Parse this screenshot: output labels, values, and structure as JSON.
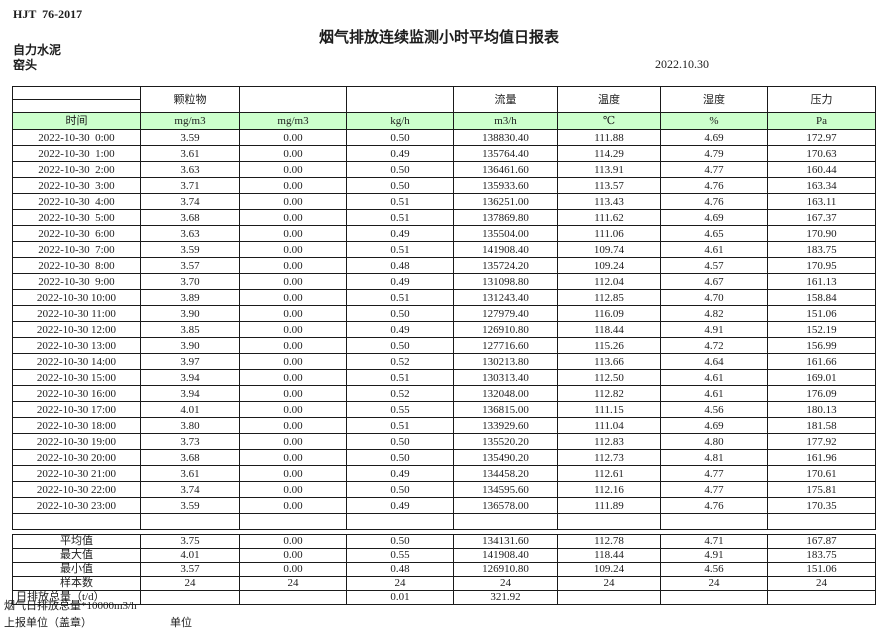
{
  "page": {
    "doc_code": "HJT  76-2017",
    "title": "烟气排放连续监测小时平均值日报表",
    "company": "自力水泥",
    "station": "窑头",
    "date": "2022.10.30"
  },
  "colors": {
    "unit_row_bg": "#ccffcc",
    "border": "#1a1a1a"
  },
  "table": {
    "group_headers": [
      "颗粒物",
      "",
      "",
      "流量",
      "温度",
      "湿度",
      "压力"
    ],
    "unit_row": {
      "time_label": "时间",
      "units": [
        "mg/m3",
        "mg/m3",
        "kg/h",
        "m3/h",
        "℃",
        "%",
        "Pa"
      ]
    },
    "rows": [
      {
        "time": "2022-10-30  0:00",
        "values": [
          "3.59",
          "0.00",
          "0.50",
          "138830.40",
          "111.88",
          "4.69",
          "172.97"
        ]
      },
      {
        "time": "2022-10-30  1:00",
        "values": [
          "3.61",
          "0.00",
          "0.49",
          "135764.40",
          "114.29",
          "4.79",
          "170.63"
        ]
      },
      {
        "time": "2022-10-30  2:00",
        "values": [
          "3.63",
          "0.00",
          "0.50",
          "136461.60",
          "113.91",
          "4.77",
          "160.44"
        ]
      },
      {
        "time": "2022-10-30  3:00",
        "values": [
          "3.71",
          "0.00",
          "0.50",
          "135933.60",
          "113.57",
          "4.76",
          "163.34"
        ]
      },
      {
        "time": "2022-10-30  4:00",
        "values": [
          "3.74",
          "0.00",
          "0.51",
          "136251.00",
          "113.43",
          "4.76",
          "163.11"
        ]
      },
      {
        "time": "2022-10-30  5:00",
        "values": [
          "3.68",
          "0.00",
          "0.51",
          "137869.80",
          "111.62",
          "4.69",
          "167.37"
        ]
      },
      {
        "time": "2022-10-30  6:00",
        "values": [
          "3.63",
          "0.00",
          "0.49",
          "135504.00",
          "111.06",
          "4.65",
          "170.90"
        ]
      },
      {
        "time": "2022-10-30  7:00",
        "values": [
          "3.59",
          "0.00",
          "0.51",
          "141908.40",
          "109.74",
          "4.61",
          "183.75"
        ]
      },
      {
        "time": "2022-10-30  8:00",
        "values": [
          "3.57",
          "0.00",
          "0.48",
          "135724.20",
          "109.24",
          "4.57",
          "170.95"
        ]
      },
      {
        "time": "2022-10-30  9:00",
        "values": [
          "3.70",
          "0.00",
          "0.49",
          "131098.80",
          "112.04",
          "4.67",
          "161.13"
        ]
      },
      {
        "time": "2022-10-30 10:00",
        "values": [
          "3.89",
          "0.00",
          "0.51",
          "131243.40",
          "112.85",
          "4.70",
          "158.84"
        ]
      },
      {
        "time": "2022-10-30 11:00",
        "values": [
          "3.90",
          "0.00",
          "0.50",
          "127979.40",
          "116.09",
          "4.82",
          "151.06"
        ]
      },
      {
        "time": "2022-10-30 12:00",
        "values": [
          "3.85",
          "0.00",
          "0.49",
          "126910.80",
          "118.44",
          "4.91",
          "152.19"
        ]
      },
      {
        "time": "2022-10-30 13:00",
        "values": [
          "3.90",
          "0.00",
          "0.50",
          "127716.60",
          "115.26",
          "4.72",
          "156.99"
        ]
      },
      {
        "time": "2022-10-30 14:00",
        "values": [
          "3.97",
          "0.00",
          "0.52",
          "130213.80",
          "113.66",
          "4.64",
          "161.66"
        ]
      },
      {
        "time": "2022-10-30 15:00",
        "values": [
          "3.94",
          "0.00",
          "0.51",
          "130313.40",
          "112.50",
          "4.61",
          "169.01"
        ]
      },
      {
        "time": "2022-10-30 16:00",
        "values": [
          "3.94",
          "0.00",
          "0.52",
          "132048.00",
          "112.82",
          "4.61",
          "176.09"
        ]
      },
      {
        "time": "2022-10-30 17:00",
        "values": [
          "4.01",
          "0.00",
          "0.55",
          "136815.00",
          "111.15",
          "4.56",
          "180.13"
        ]
      },
      {
        "time": "2022-10-30 18:00",
        "values": [
          "3.80",
          "0.00",
          "0.51",
          "133929.60",
          "111.04",
          "4.69",
          "181.58"
        ]
      },
      {
        "time": "2022-10-30 19:00",
        "values": [
          "3.73",
          "0.00",
          "0.50",
          "135520.20",
          "112.83",
          "4.80",
          "177.92"
        ]
      },
      {
        "time": "2022-10-30 20:00",
        "values": [
          "3.68",
          "0.00",
          "0.50",
          "135490.20",
          "112.73",
          "4.81",
          "161.96"
        ]
      },
      {
        "time": "2022-10-30 21:00",
        "values": [
          "3.61",
          "0.00",
          "0.49",
          "134458.20",
          "112.61",
          "4.77",
          "170.61"
        ]
      },
      {
        "time": "2022-10-30 22:00",
        "values": [
          "3.74",
          "0.00",
          "0.50",
          "134595.60",
          "112.16",
          "4.77",
          "175.81"
        ]
      },
      {
        "time": "2022-10-30 23:00",
        "values": [
          "3.59",
          "0.00",
          "0.49",
          "136578.00",
          "111.89",
          "4.76",
          "170.35"
        ]
      }
    ],
    "summary": [
      {
        "label": "平均值",
        "values": [
          "3.75",
          "0.00",
          "0.50",
          "134131.60",
          "112.78",
          "4.71",
          "167.87"
        ]
      },
      {
        "label": "最大值",
        "values": [
          "4.01",
          "0.00",
          "0.55",
          "141908.40",
          "118.44",
          "4.91",
          "183.75"
        ]
      },
      {
        "label": "最小值",
        "values": [
          "3.57",
          "0.00",
          "0.48",
          "126910.80",
          "109.24",
          "4.56",
          "151.06"
        ]
      },
      {
        "label": "样本数",
        "values": [
          "24",
          "24",
          "24",
          "24",
          "24",
          "24",
          "24"
        ]
      },
      {
        "label": "日排放总量（t/d）",
        "values": [
          "",
          "",
          "0.01",
          "321.92",
          "",
          "",
          ""
        ]
      }
    ]
  },
  "footer": {
    "note": "烟气日排放总量*10000m3/h",
    "report_unit": "上报单位（盖章）",
    "unit_label": "单位"
  }
}
